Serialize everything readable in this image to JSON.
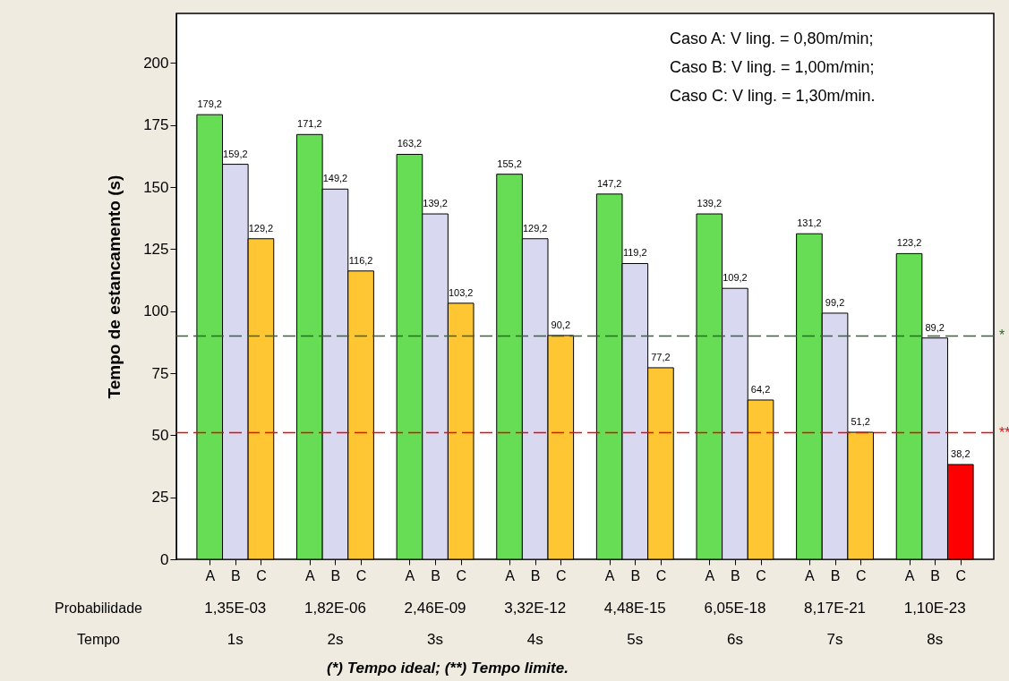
{
  "chart_data": {
    "type": "bar",
    "ylabel": "Tempo de estancamento (s)",
    "categories": [
      "A",
      "B",
      "C",
      "A",
      "B",
      "C",
      "A",
      "B",
      "C",
      "A",
      "B",
      "C",
      "A",
      "B",
      "C",
      "A",
      "B",
      "C",
      "A",
      "B",
      "C",
      "A",
      "B",
      "C"
    ],
    "values": [
      179.2,
      159.2,
      129.2,
      171.2,
      149.2,
      116.2,
      163.2,
      139.2,
      103.2,
      155.2,
      129.2,
      90.2,
      147.2,
      119.2,
      77.2,
      139.2,
      109.2,
      64.2,
      131.2,
      99.2,
      51.2,
      123.2,
      89.2,
      38.2
    ],
    "colors": [
      "#66dd55",
      "#d8d8f0",
      "#ffc633",
      "#66dd55",
      "#d8d8f0",
      "#ffc633",
      "#66dd55",
      "#d8d8f0",
      "#ffc633",
      "#66dd55",
      "#d8d8f0",
      "#ffc633",
      "#66dd55",
      "#d8d8f0",
      "#ffc633",
      "#66dd55",
      "#d8d8f0",
      "#ffc633",
      "#66dd55",
      "#d8d8f0",
      "#ffc633",
      "#66dd55",
      "#d8d8f0",
      "#ff0000"
    ],
    "value_labels": [
      "179,2",
      "159,2",
      "129,2",
      "171,2",
      "149,2",
      "116,2",
      "163,2",
      "139,2",
      "103,2",
      "155,2",
      "129,2",
      "90,2",
      "147,2",
      "119,2",
      "77,2",
      "139,2",
      "109,2",
      "64,2",
      "131,2",
      "99,2",
      "51,2",
      "123,2",
      "89,2",
      "38,2"
    ],
    "ylim": [
      0,
      220
    ],
    "yticks": [
      0,
      25,
      50,
      75,
      100,
      125,
      150,
      175,
      200
    ],
    "grid": false,
    "ref_lines": [
      {
        "axis": "y",
        "value": 90,
        "label": "*",
        "color": "#336633",
        "line_style": "dashed"
      },
      {
        "axis": "y",
        "value": 51,
        "label": "**",
        "color": "#ff0000",
        "line_style": "dashed"
      }
    ],
    "annotations": [
      "Caso A:  V ling. = 0,80m/min;",
      "Caso B:  V ling. = 1,00m/min;",
      "Caso C:  V ling. = 1,30m/min.",
      "Probabilidade",
      "1,35E-03",
      "1,82E-06",
      "2,46E-09",
      "3,32E-12",
      "4,48E-15",
      "6,05E-18",
      "8,17E-21",
      "1,10E-23",
      "Tempo",
      "1s",
      "2s",
      "3s",
      "4s",
      "5s",
      "6s",
      "7s",
      "8s",
      "(*) Tempo ideal;   (**) Tempo limite."
    ]
  }
}
